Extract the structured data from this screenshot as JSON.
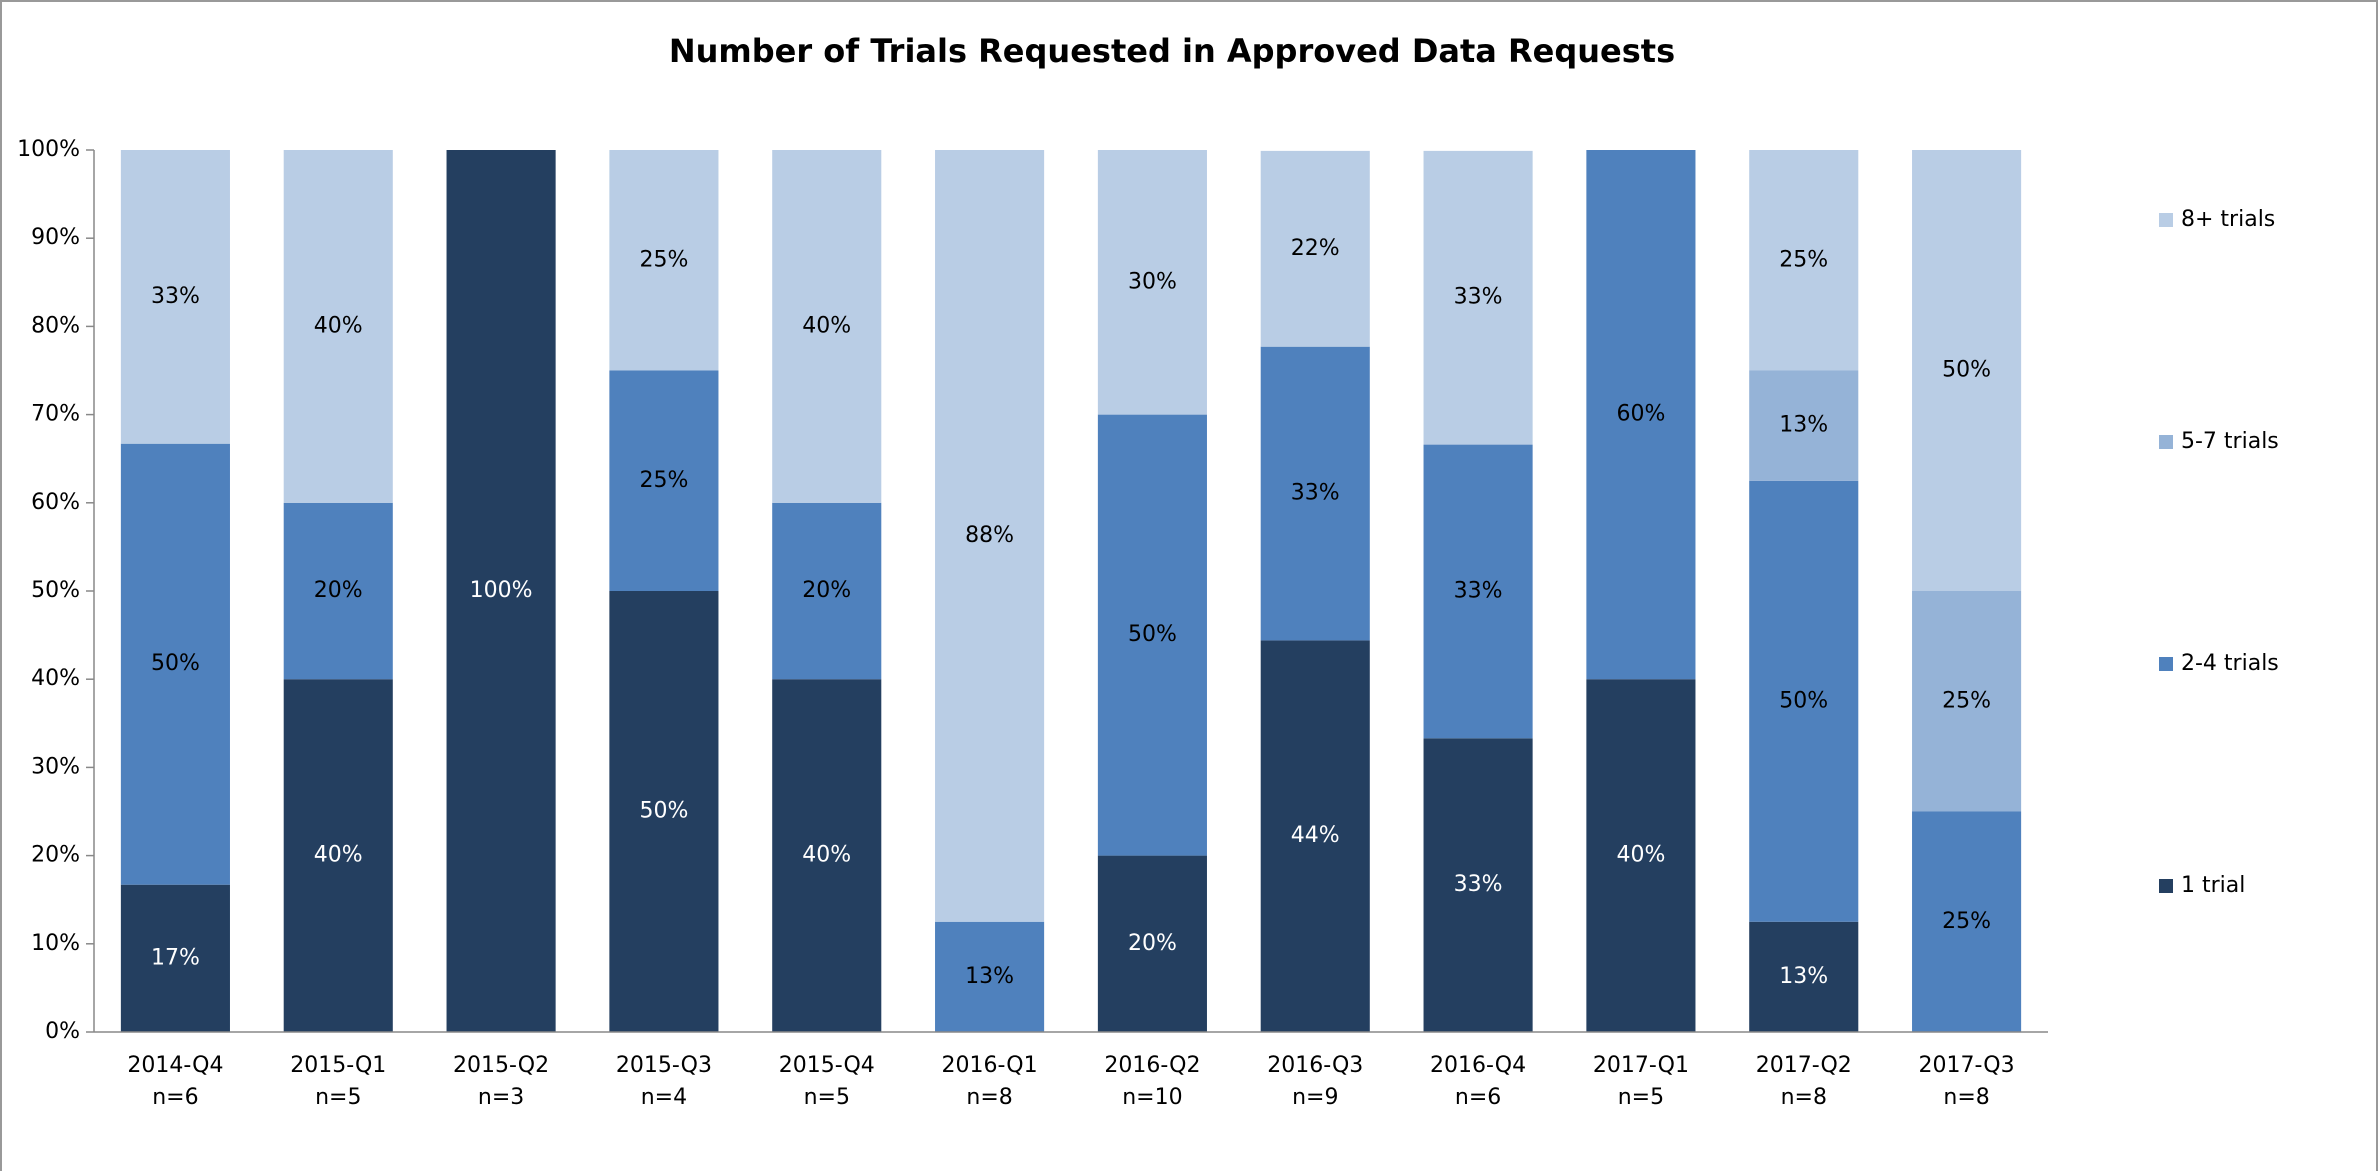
{
  "chart_data": {
    "type": "stacked_bar",
    "title": "Number of Trials Requested in Approved Data Requests",
    "categories": [
      "2014-Q4",
      "2015-Q1",
      "2015-Q2",
      "2015-Q3",
      "2015-Q4",
      "2016-Q1",
      "2016-Q2",
      "2016-Q3",
      "2016-Q4",
      "2017-Q1",
      "2017-Q2",
      "2017-Q3"
    ],
    "sample_sizes": [
      "n=6",
      "n=5",
      "n=3",
      "n=4",
      "n=5",
      "n=8",
      "n=10",
      "n=9",
      "n=6",
      "n=5",
      "n=8",
      "n=8"
    ],
    "series": [
      {
        "name": "1 trial",
        "color": "#243f60",
        "label_color": "#ffffff",
        "values": [
          16.7,
          40,
          100,
          50,
          40,
          0,
          20,
          44.4,
          33.3,
          40,
          12.5,
          0
        ],
        "value_labels": [
          "17%",
          "40%",
          "100%",
          "50%",
          "40%",
          null,
          "20%",
          "44%",
          "33%",
          "40%",
          "13%",
          null
        ]
      },
      {
        "name": "2-4 trials",
        "color": "#4f81bd",
        "label_color": "#000000",
        "values": [
          50,
          20,
          0,
          25,
          20,
          12.5,
          50,
          33.3,
          33.3,
          60,
          50,
          25
        ],
        "value_labels": [
          "50%",
          "20%",
          null,
          "25%",
          "20%",
          "13%",
          "50%",
          "33%",
          "33%",
          "60%",
          "50%",
          "25%"
        ]
      },
      {
        "name": "5-7 trials",
        "color": "#95b3d7",
        "label_color": "#000000",
        "values": [
          0,
          0,
          0,
          0,
          0,
          0,
          0,
          0,
          0,
          0,
          12.5,
          25
        ],
        "value_labels": [
          null,
          null,
          null,
          null,
          null,
          null,
          null,
          null,
          null,
          null,
          "13%",
          "25%"
        ]
      },
      {
        "name": "8+ trials",
        "color": "#b9cde5",
        "label_color": "#000000",
        "values": [
          33.3,
          40,
          0,
          25,
          40,
          87.5,
          30,
          22.2,
          33.3,
          0,
          25,
          50
        ],
        "value_labels": [
          "33%",
          "40%",
          null,
          "25%",
          "40%",
          "88%",
          "30%",
          "22%",
          "33%",
          null,
          "25%",
          "50%"
        ]
      }
    ],
    "ylim": [
      0,
      100
    ],
    "yticks": [
      {
        "value": 0,
        "label": "0%"
      },
      {
        "value": 10,
        "label": "10%"
      },
      {
        "value": 20,
        "label": "20%"
      },
      {
        "value": 30,
        "label": "30%"
      },
      {
        "value": 40,
        "label": "40%"
      },
      {
        "value": 50,
        "label": "50%"
      },
      {
        "value": 60,
        "label": "60%"
      },
      {
        "value": 70,
        "label": "70%"
      },
      {
        "value": 80,
        "label": "80%"
      },
      {
        "value": 90,
        "label": "90%"
      },
      {
        "value": 100,
        "label": "100%"
      }
    ],
    "grid": false,
    "legend": "right"
  }
}
